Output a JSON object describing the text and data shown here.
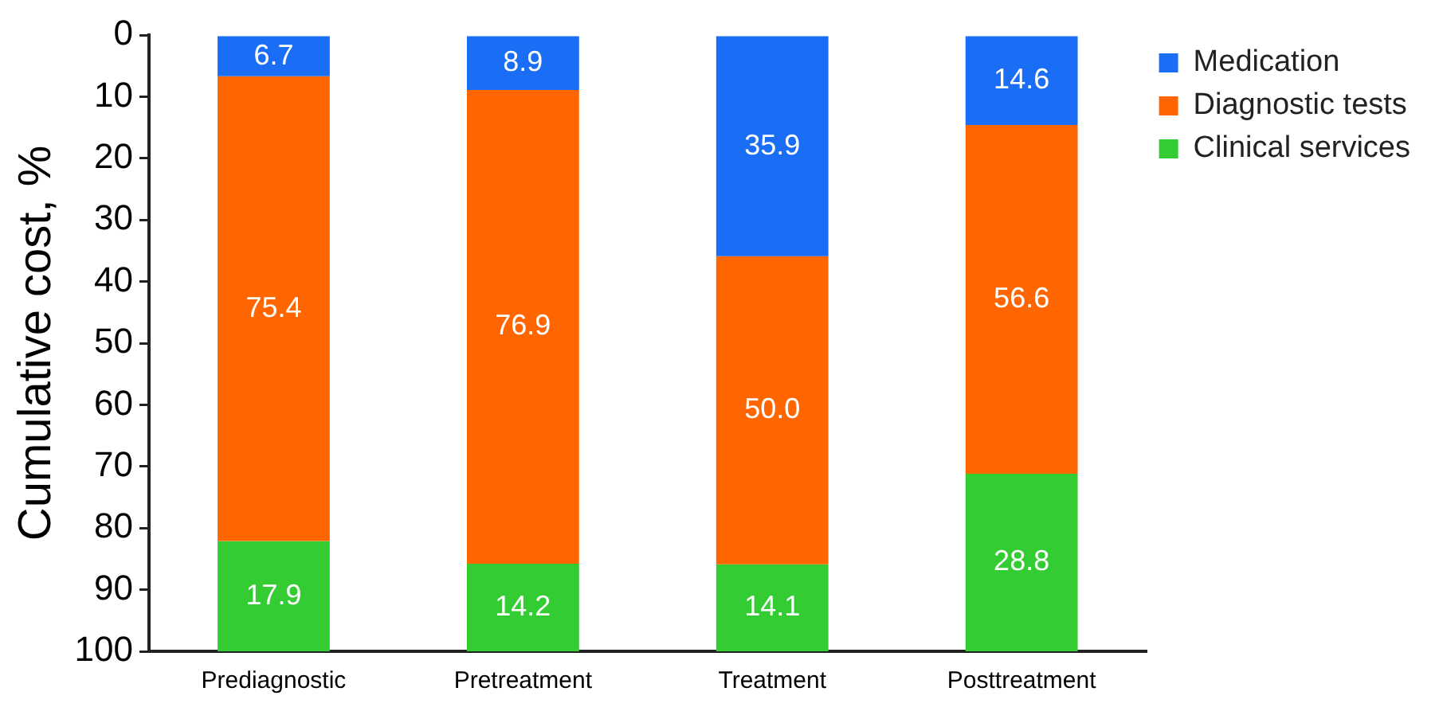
{
  "chart_data": {
    "type": "bar",
    "stacked": true,
    "ylabel": "Cumulative cost, %",
    "categories": [
      "Prediagnostic",
      "Pretreatment",
      "Treatment",
      "Posttreatment"
    ],
    "series": [
      {
        "name": "Medication",
        "color": "#1a6ef5",
        "values": [
          6.7,
          8.9,
          35.9,
          14.6
        ],
        "value_labels": [
          "6.7",
          "8.9",
          "35.9",
          "14.6"
        ]
      },
      {
        "name": "Diagnostic tests",
        "color": "#ff6600",
        "values": [
          75.4,
          76.9,
          50.0,
          56.6
        ],
        "value_labels": [
          "75.4",
          "76.9",
          "50.0",
          "56.6"
        ]
      },
      {
        "name": "Clinical services",
        "color": "#33cc33",
        "values": [
          17.9,
          14.2,
          14.1,
          28.8
        ],
        "value_labels": [
          "17.9",
          "14.2",
          "14.1",
          "28.8"
        ]
      }
    ],
    "ylim": [
      100,
      0
    ],
    "yticks": [
      0,
      10,
      20,
      30,
      40,
      50,
      60,
      70,
      80,
      90,
      100
    ],
    "grid": false,
    "legend": "top right"
  }
}
